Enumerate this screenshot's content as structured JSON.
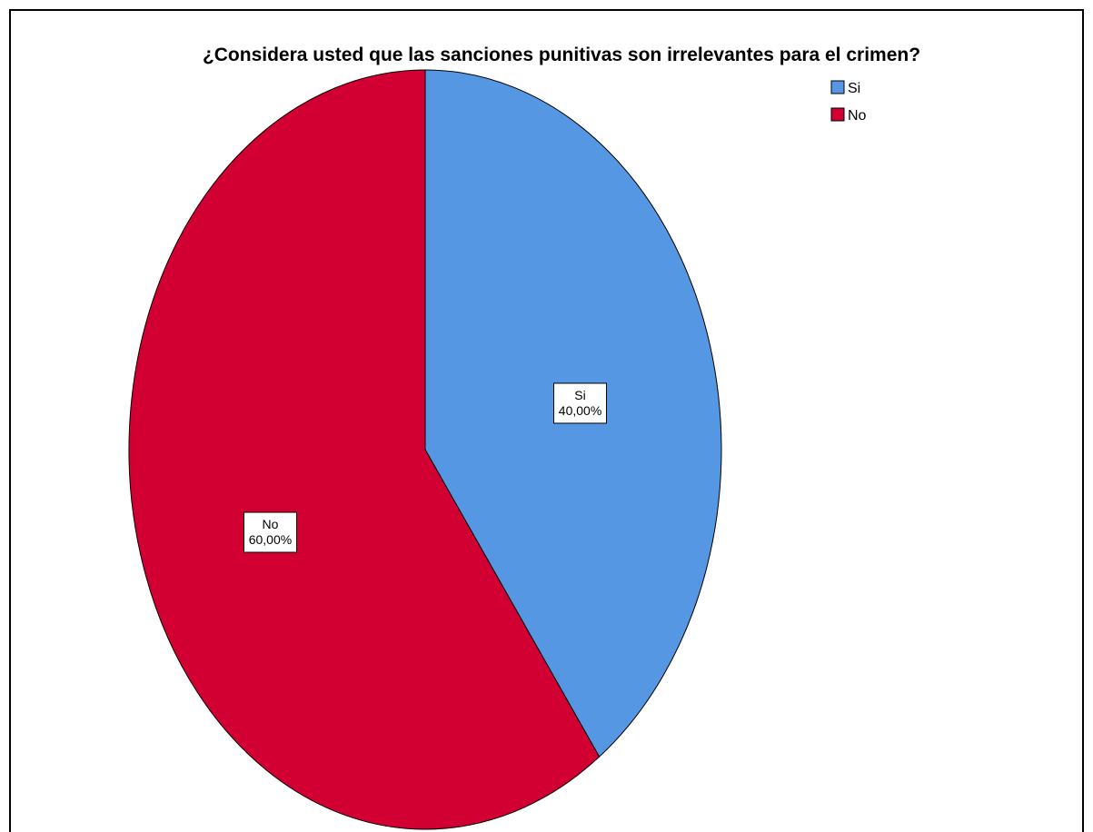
{
  "chart_data": {
    "type": "pie",
    "title": "¿Considera usted que las sanciones punitivas son irrelevantes para el crimen?",
    "slices": [
      {
        "label": "Si",
        "value": 40.0,
        "value_label": "40,00%",
        "color": "#5597e3"
      },
      {
        "label": "No",
        "value": 60.0,
        "value_label": "60,00%",
        "color": "#d20032"
      }
    ],
    "legend": {
      "position": "top-right",
      "items": [
        {
          "label": "Si",
          "color": "#5597e3"
        },
        {
          "label": "No",
          "color": "#d20032"
        }
      ]
    },
    "start_angle": "12 o'clock",
    "direction": "clockwise"
  }
}
